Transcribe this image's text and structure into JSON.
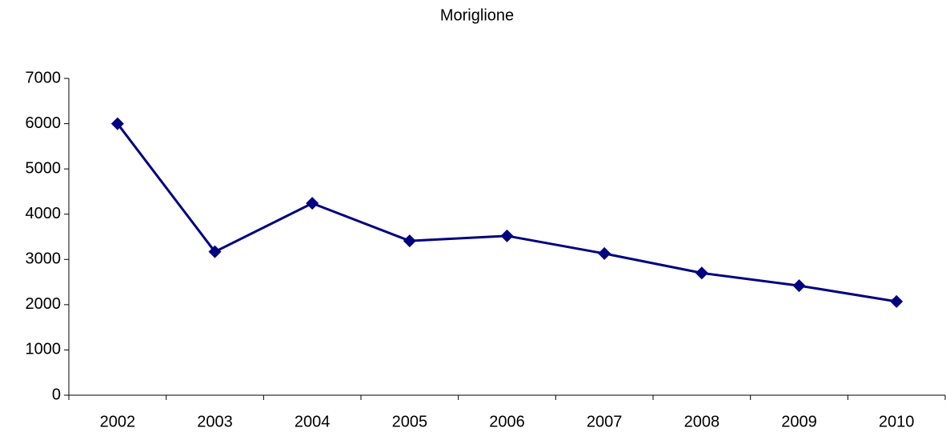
{
  "chart_data": {
    "type": "line",
    "title": "Moriglione",
    "categories": [
      "2002",
      "2003",
      "2004",
      "2005",
      "2006",
      "2007",
      "2008",
      "2009",
      "2010"
    ],
    "series": [
      {
        "name": "Moriglione",
        "color": "#000080",
        "values": [
          6000,
          3170,
          4240,
          3410,
          3520,
          3130,
          2700,
          2420,
          2070
        ]
      }
    ],
    "ylim": [
      0,
      7000
    ],
    "yticks": [
      0,
      1000,
      2000,
      3000,
      4000,
      5000,
      6000,
      7000
    ],
    "grid": false,
    "marker": "diamond"
  }
}
